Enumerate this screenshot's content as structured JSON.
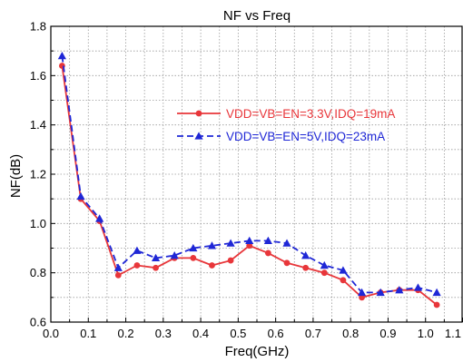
{
  "chart_data": {
    "type": "line",
    "title": "NF vs Freq",
    "xlabel": "Freq(GHz)",
    "ylabel": "NF(dB)",
    "xlim": [
      0.0,
      1.1
    ],
    "ylim": [
      0.6,
      1.8
    ],
    "x_ticks": [
      "0.0",
      "0.1",
      "0.2",
      "0.3",
      "0.4",
      "0.5",
      "0.6",
      "0.7",
      "0.8",
      "0.9",
      "1.0",
      "1.1"
    ],
    "y_ticks": [
      "0.6",
      "0.8",
      "1.0",
      "1.2",
      "1.4",
      "1.6",
      "1.8"
    ],
    "grid": true,
    "legend_position": "right",
    "series": [
      {
        "name": "VDD=VB=EN=3.3V,IDQ=19mA",
        "color": "#e8363a",
        "marker": "circle",
        "x": [
          0.03,
          0.08,
          0.13,
          0.18,
          0.23,
          0.28,
          0.33,
          0.38,
          0.43,
          0.48,
          0.53,
          0.58,
          0.63,
          0.68,
          0.73,
          0.78,
          0.83,
          0.88,
          0.93,
          0.98,
          1.03
        ],
        "y": [
          1.64,
          1.1,
          1.01,
          0.79,
          0.83,
          0.82,
          0.86,
          0.86,
          0.83,
          0.85,
          0.91,
          0.88,
          0.84,
          0.82,
          0.8,
          0.77,
          0.7,
          0.72,
          0.73,
          0.73,
          0.67
        ]
      },
      {
        "name": "VDD=VB=EN=5V,IDQ=23mA",
        "color": "#1f27d6",
        "marker": "triangle",
        "x": [
          0.03,
          0.08,
          0.13,
          0.18,
          0.23,
          0.28,
          0.33,
          0.38,
          0.43,
          0.48,
          0.53,
          0.58,
          0.63,
          0.68,
          0.73,
          0.78,
          0.83,
          0.88,
          0.93,
          0.98,
          1.03
        ],
        "y": [
          1.68,
          1.11,
          1.02,
          0.82,
          0.89,
          0.86,
          0.87,
          0.9,
          0.91,
          0.92,
          0.93,
          0.93,
          0.92,
          0.87,
          0.83,
          0.81,
          0.72,
          0.72,
          0.73,
          0.74,
          0.72
        ]
      }
    ]
  }
}
